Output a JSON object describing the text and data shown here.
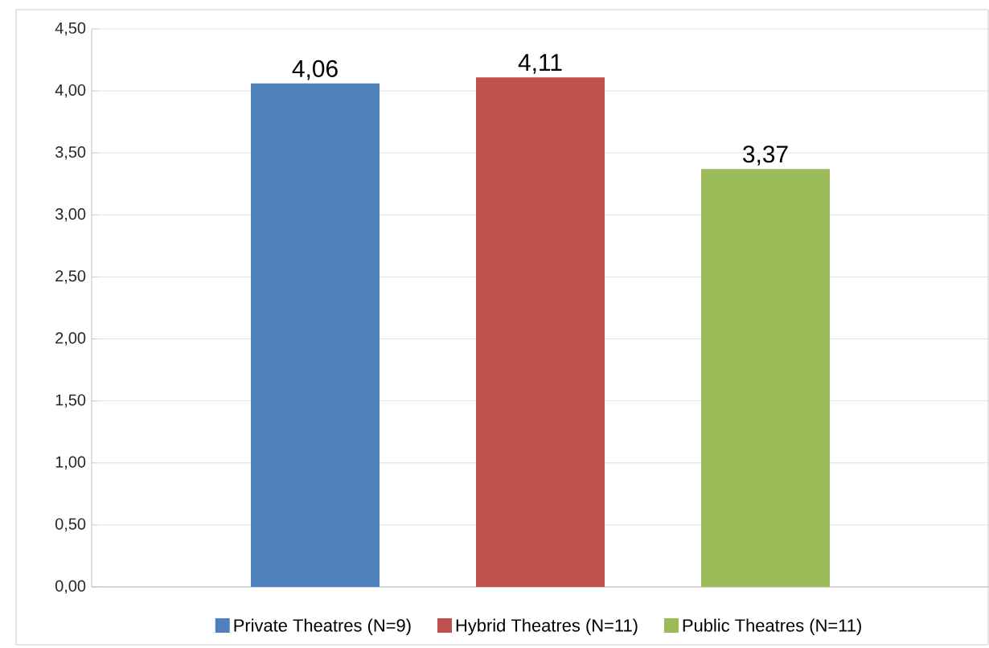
{
  "chart_data": {
    "type": "bar",
    "categories": [
      null
    ],
    "series": [
      {
        "name": "Private Theatres (N=9)",
        "color": "#4f81bd",
        "values": [
          4.06
        ],
        "value_labels": [
          "4,06"
        ]
      },
      {
        "name": "Hybrid Theatres (N=11)",
        "color": "#c0504d",
        "values": [
          4.11
        ],
        "value_labels": [
          "4,11"
        ]
      },
      {
        "name": "Public Theatres (N=11)",
        "color": "#9bbb59",
        "values": [
          3.37
        ],
        "value_labels": [
          "3,37"
        ]
      }
    ],
    "ylim": [
      0,
      4.5
    ],
    "yticks": [
      {
        "value": 0,
        "label": "0,00"
      },
      {
        "value": 0.5,
        "label": "0,50"
      },
      {
        "value": 1,
        "label": "1,00"
      },
      {
        "value": 1.5,
        "label": "1,50"
      },
      {
        "value": 2,
        "label": "2,00"
      },
      {
        "value": 2.5,
        "label": "2,50"
      },
      {
        "value": 3,
        "label": "3,00"
      },
      {
        "value": 3.5,
        "label": "3,50"
      },
      {
        "value": 4,
        "label": "4,00"
      },
      {
        "value": 4.5,
        "label": "4,50"
      }
    ],
    "grid": "y",
    "legend": "bottom"
  }
}
